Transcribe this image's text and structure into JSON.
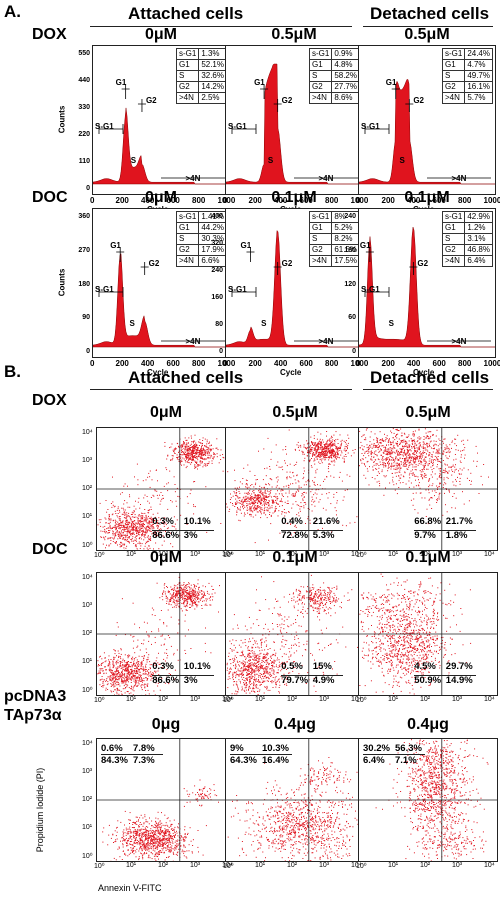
{
  "section_a": {
    "label": "A.",
    "attached_header": "Attached cells",
    "detached_header": "Detached cells",
    "rows": [
      {
        "label": "DOX",
        "panels": [
          {
            "conc": "0μM",
            "yticks": [
              "0",
              "110",
              "220",
              "330",
              "440",
              "550"
            ],
            "stats": [
              [
                "s-G1",
                "1.3%"
              ],
              [
                "G1",
                "52.1%"
              ],
              [
                "S",
                "32.6%"
              ],
              [
                "G2",
                "14.2%"
              ],
              [
                ">4N",
                "2.5%"
              ]
            ]
          },
          {
            "conc": "0.5μM",
            "yticks": [],
            "stats": [
              [
                "s-G1",
                "0.9%"
              ],
              [
                "G1",
                "4.8%"
              ],
              [
                "S",
                "58.2%"
              ],
              [
                "G2",
                "27.7%"
              ],
              [
                ">4N",
                "8.6%"
              ]
            ]
          },
          {
            "conc": "0.5μM",
            "yticks": [],
            "stats": [
              [
                "s-G1",
                "24.4%"
              ],
              [
                "G1",
                "4.7%"
              ],
              [
                "S",
                "49.7%"
              ],
              [
                "G2",
                "16.1%"
              ],
              [
                ">4N",
                "5.7%"
              ]
            ]
          }
        ]
      },
      {
        "label": "DOC",
        "panels": [
          {
            "conc": "0μM",
            "yticks": [
              "0",
              "90",
              "180",
              "270",
              "360"
            ],
            "stats": [
              [
                "s-G1",
                "1.41%"
              ],
              [
                "G1",
                "44.2%"
              ],
              [
                "S",
                "30.3%"
              ],
              [
                "G2",
                "17.9%"
              ],
              [
                ">4N",
                "6.6%"
              ]
            ]
          },
          {
            "conc": "0.1μM",
            "yticks": [
              "0",
              "80",
              "160",
              "240",
              "320",
              "400"
            ],
            "stats": [
              [
                "s-G1",
                "8%"
              ],
              [
                "G1",
                "5.2%"
              ],
              [
                "S",
                "8.2%"
              ],
              [
                "G2",
                "61.5%"
              ],
              [
                ">4N",
                "17.5%"
              ]
            ]
          },
          {
            "conc": "0.1μM",
            "yticks": [
              "0",
              "60",
              "120",
              "180",
              "240"
            ],
            "stats": [
              [
                "s-G1",
                "42.9%"
              ],
              [
                "G1",
                "1.2%"
              ],
              [
                "S",
                "3.1%"
              ],
              [
                "G2",
                "46.8%"
              ],
              [
                ">4N",
                "6.4%"
              ]
            ]
          }
        ]
      }
    ],
    "x_ticks": [
      "0",
      "200",
      "400",
      "600",
      "800",
      "1000"
    ],
    "xlabel": "Cycle",
    "ylabel": "Counts",
    "peak_labels": {
      "g1": "G1",
      "g2": "G2",
      "s": "S",
      "sg1": "S-G1",
      "gt4n": ">4N"
    }
  },
  "section_b": {
    "label": "B.",
    "attached_header": "Attached cells",
    "detached_header": "Detached cells",
    "rows": [
      {
        "label": "DOX",
        "panels": [
          {
            "conc": "0μM",
            "quadrants": [
              "0.3%",
              "10.1%",
              "86.6%",
              "3%"
            ]
          },
          {
            "conc": "0.5μM",
            "quadrants": [
              "0.4%",
              "21.6%",
              "72.8%",
              "5.3%"
            ]
          },
          {
            "conc": "0.5μM",
            "quadrants": [
              "66.8%",
              "21.7%",
              "9.7%",
              "1.8%"
            ]
          }
        ]
      },
      {
        "label": "DOC",
        "panels": [
          {
            "conc": "0μM",
            "quadrants": [
              "0.3%",
              "10.1%",
              "86.6%",
              "3%"
            ]
          },
          {
            "conc": "0.1μM",
            "quadrants": [
              "0.5%",
              "15%",
              "79.7%",
              "4.9%"
            ]
          },
          {
            "conc": "0.1μM",
            "quadrants": [
              "4.5%",
              "29.7%",
              "50.9%",
              "14.9%"
            ]
          }
        ]
      },
      {
        "label_line1": "pcDNA3",
        "label_line2": "TAp73α",
        "panels": [
          {
            "conc": "0μg",
            "quadrants": [
              "0.6%",
              "7.8%",
              "84.3%",
              "7.3%"
            ]
          },
          {
            "conc": "0.4μg",
            "quadrants": [
              "9%",
              "10.3%",
              "64.3%",
              "16.4%"
            ]
          },
          {
            "conc": "0.4μg",
            "quadrants": [
              "30.2%",
              "56.3%",
              "6.4%",
              "7.1%"
            ]
          }
        ]
      }
    ],
    "x_ticks": [
      "10⁰",
      "10¹",
      "10²",
      "10³",
      "10⁴"
    ],
    "y_ticks": [
      "10⁰",
      "10¹",
      "10²",
      "10³",
      "10⁴"
    ],
    "xlabel": "Annexin V-FITC",
    "ylabel": "Propidium Iodide (PI)"
  },
  "colors": {
    "plot_red": "#e0141e",
    "axis": "#222222"
  }
}
